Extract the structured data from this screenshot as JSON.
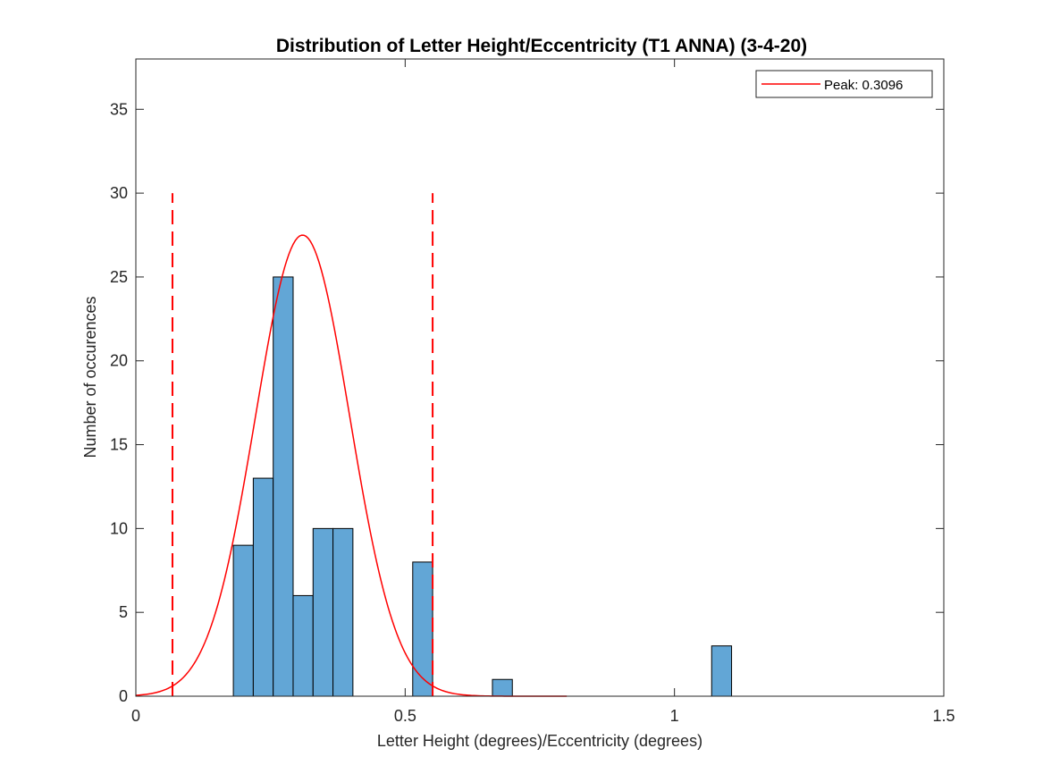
{
  "chart_data": {
    "type": "bar",
    "title": "Distribution of Letter Height/Eccentricity (T1 ANNA) (3-4-20)",
    "xlabel": "Letter Height (degrees)/Eccentricity (degrees)",
    "ylabel": "Number of occurences",
    "xlim": [
      0,
      1.5
    ],
    "ylim": [
      0,
      38
    ],
    "xticks": [
      0,
      0.5,
      1,
      1.5
    ],
    "xtick_labels": [
      "0",
      "0.5",
      "1",
      "1.5"
    ],
    "yticks": [
      0,
      5,
      10,
      15,
      20,
      25,
      30,
      35
    ],
    "ytick_labels": [
      "0",
      "5",
      "10",
      "15",
      "20",
      "25",
      "30",
      "35"
    ],
    "bin_width": 0.037,
    "bins": [
      {
        "x0": 0.181,
        "count": 9
      },
      {
        "x0": 0.218,
        "count": 13
      },
      {
        "x0": 0.255,
        "count": 25
      },
      {
        "x0": 0.292,
        "count": 6
      },
      {
        "x0": 0.329,
        "count": 10
      },
      {
        "x0": 0.366,
        "count": 10
      },
      {
        "x0": 0.514,
        "count": 8
      },
      {
        "x0": 0.662,
        "count": 1
      },
      {
        "x0": 1.069,
        "count": 3
      }
    ],
    "bar_color": "#62a6d6",
    "fit_curve": {
      "name": "Peak: 0.3096",
      "peak_x": 0.3096,
      "peak_y": 27.5,
      "sigma": 0.0875,
      "x_range": [
        0,
        0.8
      ],
      "color": "#ff0000"
    },
    "vertical_lines": [
      {
        "x": 0.068,
        "y_top": 30,
        "color": "#ff0000",
        "style": "dashed"
      },
      {
        "x": 0.551,
        "y_top": 30,
        "color": "#ff0000",
        "style": "dashed"
      }
    ],
    "legend": {
      "position": "top-right",
      "entries": [
        "Peak: 0.3096"
      ]
    },
    "grid": false
  }
}
